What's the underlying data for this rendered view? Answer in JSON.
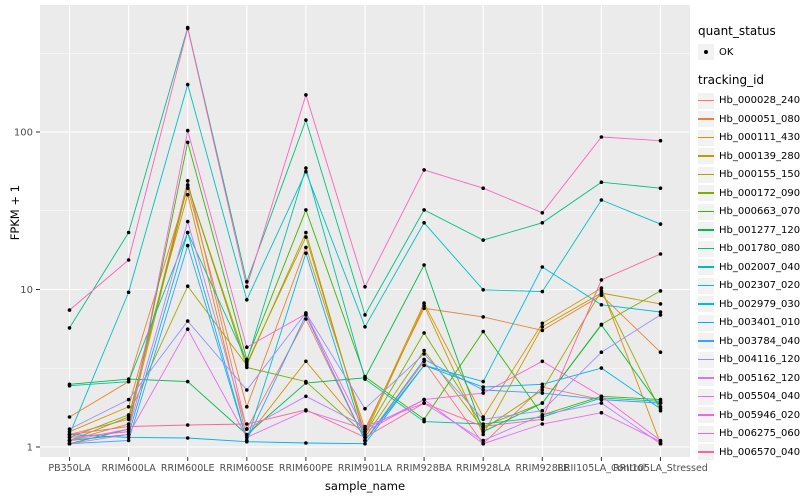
{
  "chart_data": {
    "type": "line",
    "title": "",
    "xlabel": "sample_name",
    "ylabel": "FPKM + 1",
    "y_scale": "log10",
    "y_ticks": [
      1,
      10,
      100
    ],
    "y_minor_ticks": [
      3.1623,
      31.623,
      316.23
    ],
    "ylim": [
      1,
      560
    ],
    "grid": "on",
    "legend_position": "right",
    "categories": [
      "PB350LA",
      "RRIM600LA",
      "RRIM600LE",
      "RRIM600SE",
      "RRIM600PE",
      "RRIM901LA",
      "RRIM928BA",
      "RRIM928LA",
      "RRIM928LE",
      "RRII105LA_Control",
      "RRII105LA_Stressed"
    ],
    "series": [
      {
        "name": "Hb_000028_240",
        "color": "#F8766D",
        "values": [
          1.2,
          1.5,
          49,
          1.3,
          6.5,
          1.1,
          3.5,
          1.05,
          2.4,
          2.0,
          1.9
        ]
      },
      {
        "name": "Hb_000051_080",
        "color": "#EA8331",
        "values": [
          1.55,
          2.6,
          44,
          1.8,
          18.5,
          1.3,
          7.6,
          6.7,
          5.5,
          9.2,
          4.0
        ]
      },
      {
        "name": "Hb_000111_430",
        "color": "#D89000",
        "values": [
          1.25,
          1.8,
          40,
          1.15,
          3.5,
          1.25,
          8.2,
          1.55,
          6.1,
          10.2,
          1.05
        ]
      },
      {
        "name": "Hb_000139_280",
        "color": "#C09B00",
        "values": [
          1.1,
          1.4,
          46,
          3.4,
          21.5,
          1.2,
          7.9,
          1.2,
          5.8,
          9.5,
          8.1
        ]
      },
      {
        "name": "Hb_000155_150",
        "color": "#A3A500",
        "values": [
          1.15,
          1.6,
          10.5,
          3.3,
          23,
          1.15,
          4.1,
          1.3,
          2.3,
          9.8,
          1.7
        ]
      },
      {
        "name": "Hb_000172_090",
        "color": "#7CAE00",
        "values": [
          1.1,
          1.55,
          46,
          3.2,
          2.6,
          1.2,
          5.3,
          1.35,
          1.9,
          6.0,
          9.8
        ]
      },
      {
        "name": "Hb_000663_070",
        "color": "#39B600",
        "values": [
          1.05,
          1.3,
          86,
          3.6,
          32,
          2.8,
          1.5,
          5.4,
          1.6,
          2.1,
          2.0
        ]
      },
      {
        "name": "Hb_001277_120",
        "color": "#00BB4E",
        "values": [
          2.5,
          2.7,
          2.6,
          1.2,
          2.55,
          2.75,
          14.3,
          1.25,
          1.9,
          5.95,
          1.8
        ]
      },
      {
        "name": "Hb_001780_080",
        "color": "#00C087",
        "values": [
          5.7,
          23,
          460,
          11.2,
          119,
          6.9,
          32,
          20.6,
          26.5,
          48,
          44
        ]
      },
      {
        "name": "Hb_002007_040",
        "color": "#00C1A3",
        "values": [
          2.45,
          2.6,
          23,
          3.5,
          59,
          2.7,
          1.45,
          1.4,
          1.55,
          2.05,
          1.95
        ]
      },
      {
        "name": "Hb_002307_020",
        "color": "#00BFC4",
        "values": [
          1.2,
          9.6,
          200,
          8.6,
          56,
          5.8,
          26.5,
          9.95,
          9.7,
          37,
          26
        ]
      },
      {
        "name": "Hb_002979_030",
        "color": "#00BAE0",
        "values": [
          1.1,
          1.2,
          23,
          1.1,
          17,
          1.1,
          3.3,
          2.6,
          13.9,
          8.0,
          7.2
        ]
      },
      {
        "name": "Hb_003401_010",
        "color": "#00B0F6",
        "values": [
          1.2,
          1.15,
          1.14,
          1.08,
          1.06,
          1.05,
          3.3,
          2.4,
          2.5,
          3.17,
          1.75
        ]
      },
      {
        "name": "Hb_003784_040",
        "color": "#35A2FF",
        "values": [
          1.05,
          1.1,
          19,
          1.1,
          6.9,
          1.1,
          3.6,
          2.3,
          2.2,
          2.0,
          1.9
        ]
      },
      {
        "name": "Hb_004116_120",
        "color": "#9590FF",
        "values": [
          1.3,
          2.0,
          6.3,
          2.3,
          7.1,
          1.75,
          3.9,
          1.5,
          1.7,
          4.0,
          6.9
        ]
      },
      {
        "name": "Hb_005162_120",
        "color": "#C77CFF",
        "values": [
          1.1,
          1.3,
          27,
          1.3,
          2.1,
          1.35,
          1.9,
          1.1,
          1.6,
          1.9,
          1.05
        ]
      },
      {
        "name": "Hb_005504_040",
        "color": "#E76BF3",
        "values": [
          1.05,
          1.2,
          5.6,
          1.15,
          1.7,
          1.3,
          2.0,
          1.05,
          1.4,
          1.65,
          1.08
        ]
      },
      {
        "name": "Hb_005946_020",
        "color": "#FA62DB",
        "values": [
          1.15,
          1.25,
          102,
          4.3,
          7.0,
          1.25,
          2.0,
          2.2,
          3.5,
          2.1,
          1.1
        ]
      },
      {
        "name": "Hb_006275_060",
        "color": "#FF62BC",
        "values": [
          7.4,
          15.4,
          455,
          10.4,
          172,
          10.4,
          57.5,
          44,
          30.7,
          93,
          88
        ]
      },
      {
        "name": "Hb_006570_040",
        "color": "#FF6598",
        "values": [
          1.2,
          1.35,
          1.38,
          1.4,
          1.72,
          1.15,
          1.9,
          1.35,
          1.5,
          11.5,
          16.8
        ]
      }
    ],
    "legend": {
      "quant_status_title": "quant_status",
      "quant_status_items": [
        {
          "label": "OK",
          "marker": "point",
          "color": "#000000"
        }
      ],
      "tracking_id_title": "tracking_id"
    },
    "style": {
      "panel_bg": "#EBEBEB",
      "grid_color": "#FFFFFF",
      "axis_text_color": "#4D4D4D",
      "tick_color": "#333333",
      "point_color": "#000000",
      "legend_key_bg": "#F2F2F2"
    }
  }
}
